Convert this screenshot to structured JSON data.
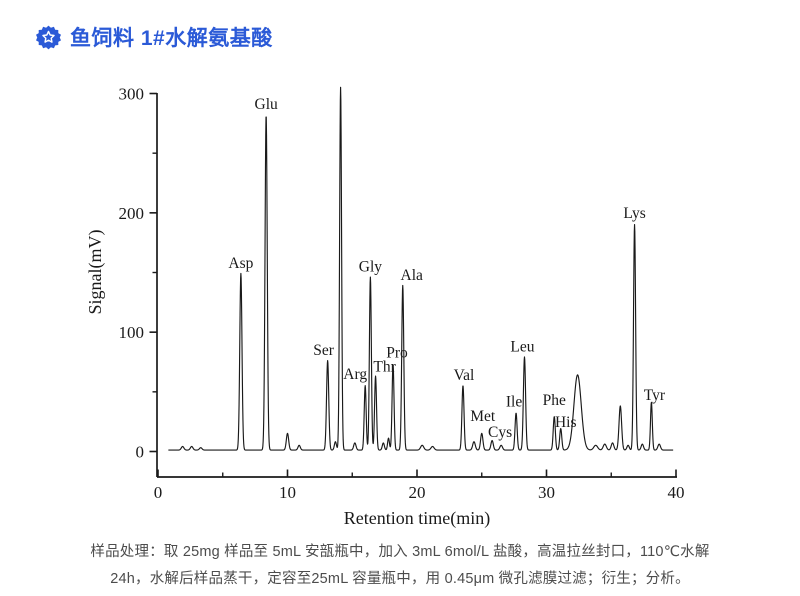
{
  "header": {
    "title": "鱼饲料 1#水解氨基酸",
    "accent_color": "#2b5ad7",
    "badge_icon": "star-seal"
  },
  "caption": {
    "line1": "样品处理：取 25mg 样品至 5mL 安瓿瓶中，加入 3mL 6mol/L 盐酸，高温拉丝封口，110℃水解",
    "line2": "24h，水解后样品蒸干，定容至25mL 容量瓶中，用 0.45μm 微孔滤膜过滤；衍生；分析。"
  },
  "chart_data": {
    "type": "line",
    "title": "",
    "xlabel": "Retention time(min)",
    "ylabel": "Signal(mV)",
    "xlim": [
      0,
      40
    ],
    "ylim": [
      0,
      300
    ],
    "x_ticks_major": [
      0,
      10,
      20,
      30,
      40
    ],
    "x_ticks_minor": [
      5,
      15,
      25,
      35
    ],
    "y_ticks_major": [
      0,
      100,
      200,
      300
    ],
    "y_ticks_minor": [
      50,
      150,
      250
    ],
    "grid": false,
    "legend": "none",
    "line_color": "#1a1a1a",
    "peaks": [
      {
        "name": "",
        "rt": 1.9,
        "mv": 3,
        "sigma": 0.1
      },
      {
        "name": "",
        "rt": 2.6,
        "mv": 3,
        "sigma": 0.1
      },
      {
        "name": "",
        "rt": 3.3,
        "mv": 2,
        "sigma": 0.1
      },
      {
        "name": "Asp",
        "rt": 6.4,
        "mv": 148,
        "sigma": 0.085
      },
      {
        "name": "Glu",
        "rt": 8.35,
        "mv": 281,
        "sigma": 0.085
      },
      {
        "name": "",
        "rt": 10.0,
        "mv": 14,
        "sigma": 0.09
      },
      {
        "name": "",
        "rt": 10.9,
        "mv": 4,
        "sigma": 0.09
      },
      {
        "name": "Ser",
        "rt": 13.1,
        "mv": 75,
        "sigma": 0.085,
        "dx": -4,
        "dy": -7
      },
      {
        "name": "",
        "rt": 13.7,
        "mv": 7,
        "sigma": 0.08
      },
      {
        "name": "",
        "rt": 14.1,
        "mv": 304,
        "sigma": 0.075
      },
      {
        "name": "",
        "rt": 15.2,
        "mv": 6,
        "sigma": 0.09
      },
      {
        "name": "Arg",
        "rt": 16.0,
        "mv": 54,
        "sigma": 0.075,
        "dx": -10,
        "dy": -8
      },
      {
        "name": "Gly",
        "rt": 16.4,
        "mv": 145,
        "sigma": 0.075,
        "dx": 0,
        "dy": -7
      },
      {
        "name": "Thr",
        "rt": 16.8,
        "mv": 62,
        "sigma": 0.075,
        "dx": 9,
        "dy": -6
      },
      {
        "name": "",
        "rt": 17.4,
        "mv": 6,
        "sigma": 0.08
      },
      {
        "name": "",
        "rt": 17.8,
        "mv": 10,
        "sigma": 0.07
      },
      {
        "name": "Pro",
        "rt": 18.15,
        "mv": 72,
        "sigma": 0.075,
        "dx": 4,
        "dy": -8
      },
      {
        "name": "Ala",
        "rt": 18.9,
        "mv": 138,
        "sigma": 0.08,
        "dx": 9,
        "dy": -7
      },
      {
        "name": "",
        "rt": 20.4,
        "mv": 4,
        "sigma": 0.12
      },
      {
        "name": "",
        "rt": 21.2,
        "mv": 3,
        "sigma": 0.12
      },
      {
        "name": "Val",
        "rt": 23.55,
        "mv": 54,
        "sigma": 0.08,
        "dx": 1,
        "dy": -7
      },
      {
        "name": "",
        "rt": 24.4,
        "mv": 7,
        "sigma": 0.1
      },
      {
        "name": "Met",
        "rt": 25.0,
        "mv": 14,
        "sigma": 0.09,
        "dx": 1,
        "dy": -14
      },
      {
        "name": "Cys",
        "rt": 25.8,
        "mv": 8,
        "sigma": 0.09,
        "dx": 8,
        "dy": -5
      },
      {
        "name": "",
        "rt": 26.5,
        "mv": 4,
        "sigma": 0.1
      },
      {
        "name": "Ile",
        "rt": 27.65,
        "mv": 31,
        "sigma": 0.08,
        "dx": -2,
        "dy": -8
      },
      {
        "name": "Leu",
        "rt": 28.3,
        "mv": 78,
        "sigma": 0.085,
        "dx": -2,
        "dy": -7
      },
      {
        "name": "Phe",
        "rt": 30.6,
        "mv": 28,
        "sigma": 0.08,
        "dx": 0,
        "dy": -13
      },
      {
        "name": "His",
        "rt": 31.1,
        "mv": 18,
        "sigma": 0.08,
        "dx": 5,
        "dy": -3
      },
      {
        "name": "",
        "rt": 32.4,
        "mv": 63,
        "sigma": 0.28
      },
      {
        "name": "",
        "rt": 33.8,
        "mv": 4,
        "sigma": 0.15
      },
      {
        "name": "",
        "rt": 34.5,
        "mv": 5,
        "sigma": 0.12
      },
      {
        "name": "",
        "rt": 35.1,
        "mv": 6,
        "sigma": 0.1
      },
      {
        "name": "",
        "rt": 35.7,
        "mv": 37,
        "sigma": 0.1
      },
      {
        "name": "",
        "rt": 36.3,
        "mv": 4,
        "sigma": 0.09
      },
      {
        "name": "Lys",
        "rt": 36.8,
        "mv": 189,
        "sigma": 0.08,
        "dx": 0,
        "dy": -8
      },
      {
        "name": "",
        "rt": 37.4,
        "mv": 5,
        "sigma": 0.09
      },
      {
        "name": "Tyr",
        "rt": 38.1,
        "mv": 40,
        "sigma": 0.07,
        "dx": 3,
        "dy": -4
      },
      {
        "name": "",
        "rt": 38.7,
        "mv": 5,
        "sigma": 0.1
      }
    ]
  }
}
